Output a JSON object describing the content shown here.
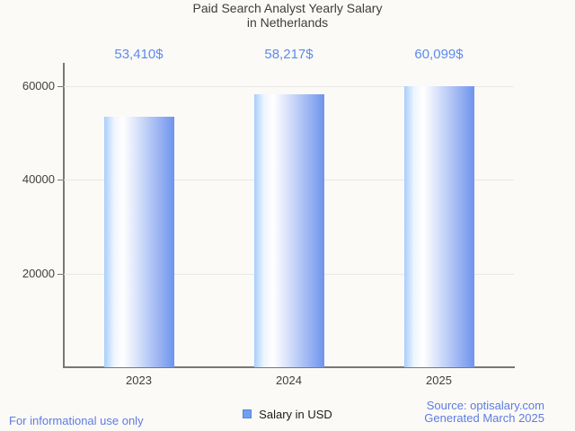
{
  "title": {
    "line1": "Paid Search Analyst Yearly Salary",
    "line2": "in Netherlands"
  },
  "chart_data": {
    "type": "bar",
    "title": "Paid Search Analyst Yearly Salary in Netherlands",
    "categories": [
      "2023",
      "2024",
      "2025"
    ],
    "values": [
      53410,
      58217,
      60099
    ],
    "value_labels": [
      "53,410$",
      "58,217$",
      "60,099$"
    ],
    "series": [
      {
        "name": "Salary in USD",
        "values": [
          53410,
          58217,
          60099
        ]
      }
    ],
    "xlabel": "",
    "ylabel": "",
    "yticks": [
      20000,
      40000,
      60000
    ],
    "ylim": [
      0,
      65000
    ],
    "grid": true,
    "legend_position": "bottom"
  },
  "legend": {
    "label": "Salary in USD"
  },
  "footer": {
    "left": "For informational use only",
    "source": "Source: optisalary.com",
    "generated": "Generated March 2025"
  },
  "colors": {
    "background": "#fbfaf7",
    "title_text": "#3d3d3d",
    "axis_label": "#404040",
    "axis_line": "#787878",
    "grid_line": "#e8e8e6",
    "value_label": "#5b8bee",
    "footer_text": "#5e7ce2",
    "bar_left": "#a7cefb",
    "bar_highlight": "#ffffff",
    "bar_right": "#6f94ee",
    "legend_swatch_fill": "#72a0f0",
    "legend_swatch_border": "#5585d8"
  }
}
